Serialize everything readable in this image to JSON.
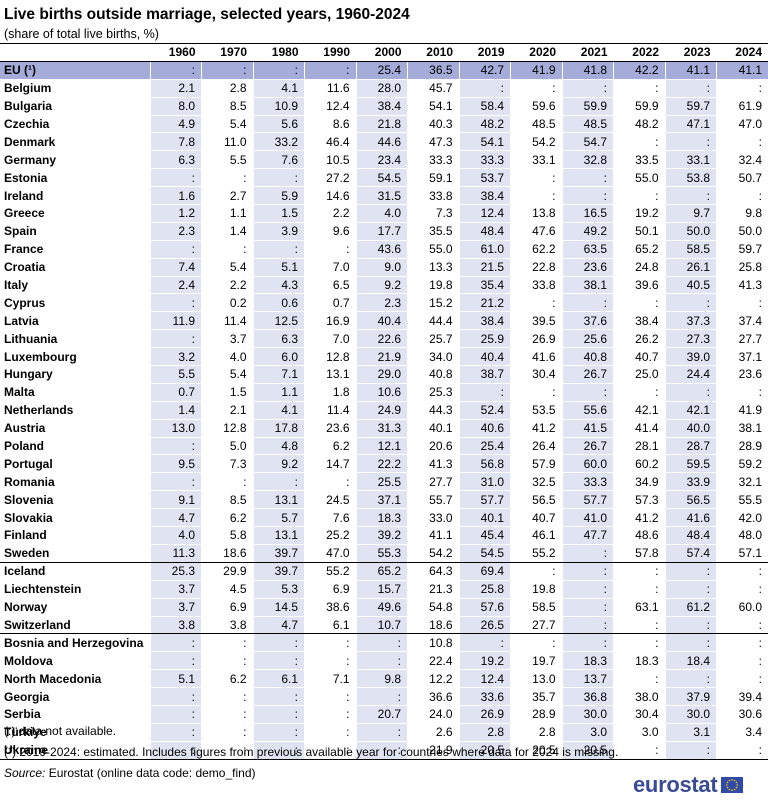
{
  "title": "Live births outside marriage, selected years, 1960-2024",
  "subtitle": "(share of total live births, %)",
  "years": [
    "1960",
    "1970",
    "1980",
    "1990",
    "2000",
    "2010",
    "2019",
    "2020",
    "2021",
    "2022",
    "2023",
    "2024"
  ],
  "rows": [
    {
      "name": "EU (¹)",
      "values": [
        ":",
        ":",
        ":",
        ":",
        "25.4",
        "36.5",
        "42.7",
        "41.9",
        "41.8",
        "42.2",
        "41.1",
        "41.1"
      ]
    },
    {
      "name": "Belgium",
      "values": [
        "2.1",
        "2.8",
        "4.1",
        "11.6",
        "28.0",
        "45.7",
        ":",
        ":",
        ":",
        ":",
        ":",
        ":"
      ]
    },
    {
      "name": "Bulgaria",
      "values": [
        "8.0",
        "8.5",
        "10.9",
        "12.4",
        "38.4",
        "54.1",
        "58.4",
        "59.6",
        "59.9",
        "59.9",
        "59.7",
        "61.9"
      ]
    },
    {
      "name": "Czechia",
      "values": [
        "4.9",
        "5.4",
        "5.6",
        "8.6",
        "21.8",
        "40.3",
        "48.2",
        "48.5",
        "48.5",
        "48.2",
        "47.1",
        "47.0"
      ]
    },
    {
      "name": "Denmark",
      "values": [
        "7.8",
        "11.0",
        "33.2",
        "46.4",
        "44.6",
        "47.3",
        "54.1",
        "54.2",
        "54.7",
        ":",
        ":",
        ":"
      ]
    },
    {
      "name": "Germany",
      "values": [
        "6.3",
        "5.5",
        "7.6",
        "10.5",
        "23.4",
        "33.3",
        "33.3",
        "33.1",
        "32.8",
        "33.5",
        "33.1",
        "32.4"
      ]
    },
    {
      "name": "Estonia",
      "values": [
        ":",
        ":",
        ":",
        "27.2",
        "54.5",
        "59.1",
        "53.7",
        ":",
        ":",
        "55.0",
        "53.8",
        "50.7"
      ]
    },
    {
      "name": "Ireland",
      "values": [
        "1.6",
        "2.7",
        "5.9",
        "14.6",
        "31.5",
        "33.8",
        "38.4",
        ":",
        ":",
        ":",
        ":",
        ":"
      ]
    },
    {
      "name": "Greece",
      "values": [
        "1.2",
        "1.1",
        "1.5",
        "2.2",
        "4.0",
        "7.3",
        "12.4",
        "13.8",
        "16.5",
        "19.2",
        "9.7",
        "9.8"
      ]
    },
    {
      "name": "Spain",
      "values": [
        "2.3",
        "1.4",
        "3.9",
        "9.6",
        "17.7",
        "35.5",
        "48.4",
        "47.6",
        "49.2",
        "50.1",
        "50.0",
        "50.0"
      ]
    },
    {
      "name": "France",
      "values": [
        ":",
        ":",
        ":",
        ":",
        "43.6",
        "55.0",
        "61.0",
        "62.2",
        "63.5",
        "65.2",
        "58.5",
        "59.7"
      ]
    },
    {
      "name": "Croatia",
      "values": [
        "7.4",
        "5.4",
        "5.1",
        "7.0",
        "9.0",
        "13.3",
        "21.5",
        "22.8",
        "23.6",
        "24.8",
        "26.1",
        "25.8"
      ]
    },
    {
      "name": "Italy",
      "values": [
        "2.4",
        "2.2",
        "4.3",
        "6.5",
        "9.2",
        "19.8",
        "35.4",
        "33.8",
        "38.1",
        "39.6",
        "40.5",
        "41.3"
      ]
    },
    {
      "name": "Cyprus",
      "values": [
        ":",
        "0.2",
        "0.6",
        "0.7",
        "2.3",
        "15.2",
        "21.2",
        ":",
        ":",
        ":",
        ":",
        ":"
      ]
    },
    {
      "name": "Latvia",
      "values": [
        "11.9",
        "11.4",
        "12.5",
        "16.9",
        "40.4",
        "44.4",
        "38.4",
        "39.5",
        "37.6",
        "38.4",
        "37.3",
        "37.4"
      ]
    },
    {
      "name": "Lithuania",
      "values": [
        ":",
        "3.7",
        "6.3",
        "7.0",
        "22.6",
        "25.7",
        "25.9",
        "26.9",
        "25.6",
        "26.2",
        "27.3",
        "27.7"
      ]
    },
    {
      "name": "Luxembourg",
      "values": [
        "3.2",
        "4.0",
        "6.0",
        "12.8",
        "21.9",
        "34.0",
        "40.4",
        "41.6",
        "40.8",
        "40.7",
        "39.0",
        "37.1"
      ]
    },
    {
      "name": "Hungary",
      "values": [
        "5.5",
        "5.4",
        "7.1",
        "13.1",
        "29.0",
        "40.8",
        "38.7",
        "30.4",
        "26.7",
        "25.0",
        "24.4",
        "23.6"
      ]
    },
    {
      "name": "Malta",
      "values": [
        "0.7",
        "1.5",
        "1.1",
        "1.8",
        "10.6",
        "25.3",
        ":",
        ":",
        ":",
        ":",
        ":",
        ":"
      ]
    },
    {
      "name": "Netherlands",
      "values": [
        "1.4",
        "2.1",
        "4.1",
        "11.4",
        "24.9",
        "44.3",
        "52.4",
        "53.5",
        "55.6",
        "42.1",
        "42.1",
        "41.9"
      ]
    },
    {
      "name": "Austria",
      "values": [
        "13.0",
        "12.8",
        "17.8",
        "23.6",
        "31.3",
        "40.1",
        "40.6",
        "41.2",
        "41.5",
        "41.4",
        "40.0",
        "38.1"
      ]
    },
    {
      "name": "Poland",
      "values": [
        ":",
        "5.0",
        "4.8",
        "6.2",
        "12.1",
        "20.6",
        "25.4",
        "26.4",
        "26.7",
        "28.1",
        "28.7",
        "28.9"
      ]
    },
    {
      "name": "Portugal",
      "values": [
        "9.5",
        "7.3",
        "9.2",
        "14.7",
        "22.2",
        "41.3",
        "56.8",
        "57.9",
        "60.0",
        "60.2",
        "59.5",
        "59.2"
      ]
    },
    {
      "name": "Romania",
      "values": [
        ":",
        ":",
        ":",
        ":",
        "25.5",
        "27.7",
        "31.0",
        "32.5",
        "33.3",
        "34.9",
        "33.9",
        "32.1"
      ]
    },
    {
      "name": "Slovenia",
      "values": [
        "9.1",
        "8.5",
        "13.1",
        "24.5",
        "37.1",
        "55.7",
        "57.7",
        "56.5",
        "57.7",
        "57.3",
        "56.5",
        "55.5"
      ]
    },
    {
      "name": "Slovakia",
      "values": [
        "4.7",
        "6.2",
        "5.7",
        "7.6",
        "18.3",
        "33.0",
        "40.1",
        "40.7",
        "41.0",
        "41.2",
        "41.6",
        "42.0"
      ]
    },
    {
      "name": "Finland",
      "values": [
        "4.0",
        "5.8",
        "13.1",
        "25.2",
        "39.2",
        "41.1",
        "45.4",
        "46.1",
        "47.7",
        "48.6",
        "48.4",
        "48.0"
      ]
    },
    {
      "name": "Sweden",
      "values": [
        "11.3",
        "18.6",
        "39.7",
        "47.0",
        "55.3",
        "54.2",
        "54.5",
        "55.2",
        ":",
        "57.8",
        "57.4",
        "57.1"
      ]
    },
    {
      "name": "Iceland",
      "values": [
        "25.3",
        "29.9",
        "39.7",
        "55.2",
        "65.2",
        "64.3",
        "69.4",
        ":",
        ":",
        ":",
        ":",
        ":"
      ]
    },
    {
      "name": "Liechtenstein",
      "values": [
        "3.7",
        "4.5",
        "5.3",
        "6.9",
        "15.7",
        "21.3",
        "25.8",
        "19.8",
        ":",
        ":",
        ":",
        ":"
      ]
    },
    {
      "name": "Norway",
      "values": [
        "3.7",
        "6.9",
        "14.5",
        "38.6",
        "49.6",
        "54.8",
        "57.6",
        "58.5",
        ":",
        "63.1",
        "61.2",
        "60.0"
      ]
    },
    {
      "name": "Switzerland",
      "values": [
        "3.8",
        "3.8",
        "4.7",
        "6.1",
        "10.7",
        "18.6",
        "26.5",
        "27.7",
        ":",
        ":",
        ":",
        ":"
      ]
    },
    {
      "name": "Bosnia and Herzegovina",
      "values": [
        ":",
        ":",
        ":",
        ":",
        ":",
        "10.8",
        ":",
        ":",
        ":",
        ":",
        ":",
        ":"
      ]
    },
    {
      "name": "Moldova",
      "values": [
        ":",
        ":",
        ":",
        ":",
        ":",
        "22.4",
        "19.2",
        "19.7",
        "18.3",
        "18.3",
        "18.4",
        ":"
      ]
    },
    {
      "name": "North Macedonia",
      "values": [
        "5.1",
        "6.2",
        "6.1",
        "7.1",
        "9.8",
        "12.2",
        "12.4",
        "13.0",
        "13.7",
        ":",
        ":",
        ":"
      ]
    },
    {
      "name": "Georgia",
      "values": [
        ":",
        ":",
        ":",
        ":",
        ":",
        "36.6",
        "33.6",
        "35.7",
        "36.8",
        "38.0",
        "37.9",
        "39.4"
      ]
    },
    {
      "name": "Serbia",
      "values": [
        ":",
        ":",
        ":",
        ":",
        "20.7",
        "24.0",
        "26.9",
        "28.9",
        "30.0",
        "30.4",
        "30.0",
        "30.6"
      ]
    },
    {
      "name": "Türkiye",
      "values": [
        ":",
        ":",
        ":",
        ":",
        ":",
        "2.6",
        "2.8",
        "2.8",
        "3.0",
        "3.0",
        "3.1",
        "3.4"
      ]
    },
    {
      "name": "Ukraine",
      "values": [
        ":",
        ":",
        ":",
        ":",
        ":",
        "21.9",
        "20.5",
        "20.5",
        "20.5",
        ":",
        ":",
        ":"
      ]
    }
  ],
  "notes": {
    "not_available": "(:) data not available.",
    "eu_note": "(¹) 2019-2024: estimated. Includes figures from previous available year for countries where data for 2024 is missing.",
    "source_label": "Source:",
    "source_text": "Eurostat (online data code: demo_find)"
  },
  "logo": {
    "text": "eurostat",
    "color": "#3a4b93",
    "flag_color": "#2f4aa8",
    "star_color": "#ffcc00"
  },
  "colors": {
    "header_row": "#a5acd9",
    "column_band": "#dfe3f2"
  }
}
